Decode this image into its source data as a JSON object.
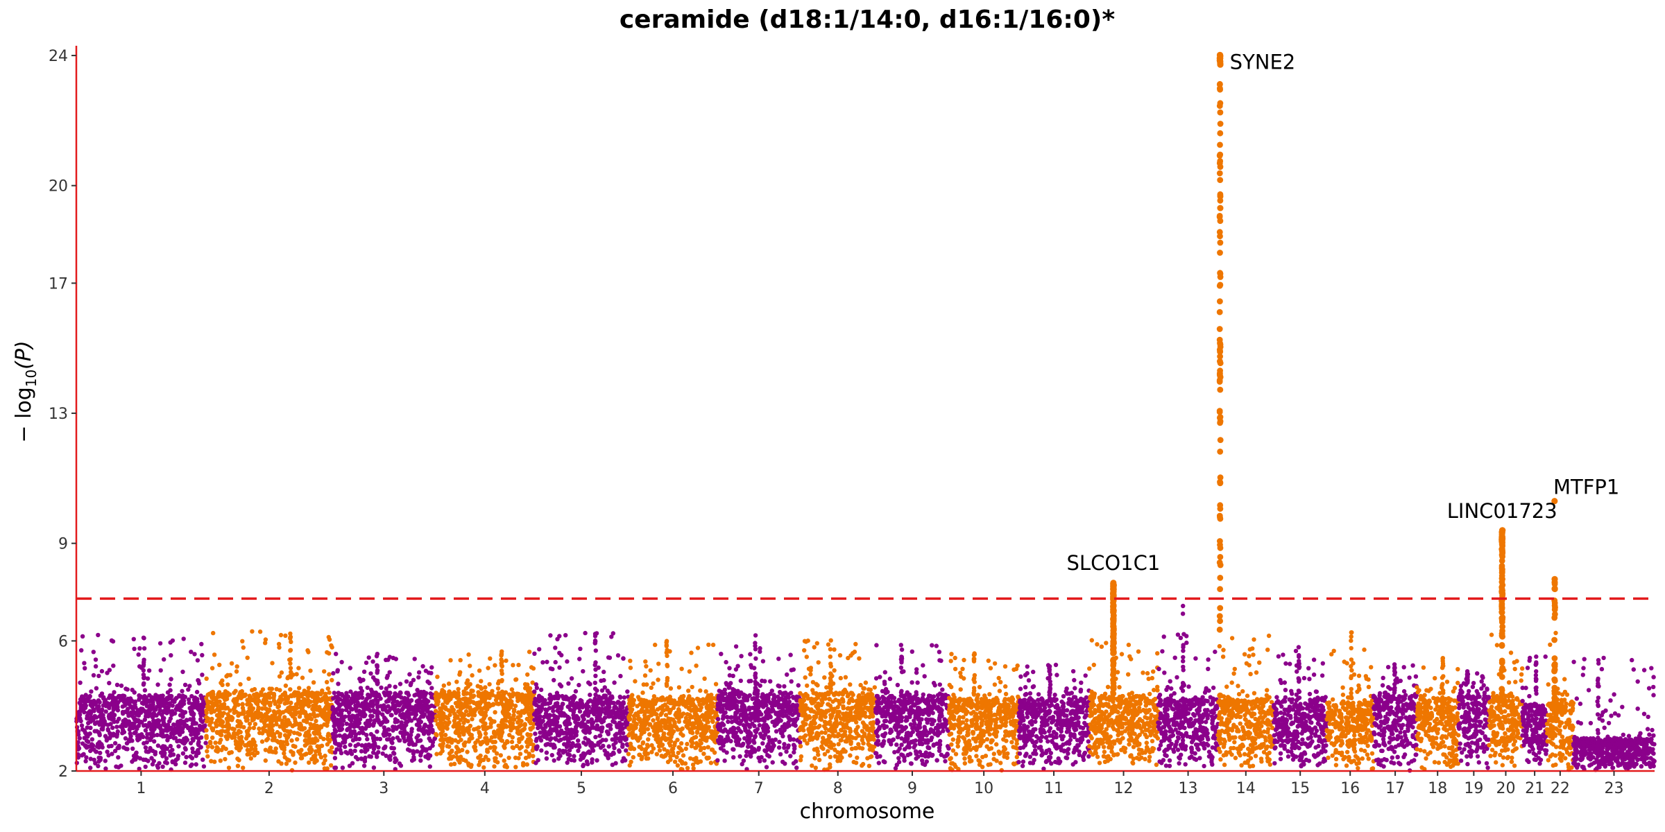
{
  "chart_data": {
    "type": "scatter",
    "subtype": "manhattan",
    "title": "ceramide (d18:1/14:0, d16:1/16:0)*",
    "xlabel": "chromosome",
    "ylabel_parts": {
      "prefix": "− log",
      "sub": "10",
      "suffix": "(P)"
    },
    "ylim": [
      2,
      24.3
    ],
    "yticks": [
      2,
      6,
      9,
      13,
      17,
      20,
      24
    ],
    "significance_line": 7.3,
    "colors": {
      "odd": "#8B008B",
      "even": "#EE7600",
      "axis": "#E31A1C",
      "threshold": "#E31A1C"
    },
    "chromosomes": [
      {
        "label": "1",
        "x0": 0,
        "x1": 249,
        "base": 4.3,
        "peak": 6.2
      },
      {
        "label": "2",
        "x0": 249,
        "x1": 492,
        "base": 4.4,
        "peak": 6.3
      },
      {
        "label": "3",
        "x0": 492,
        "x1": 690,
        "base": 4.4,
        "peak": 5.6
      },
      {
        "label": "4",
        "x0": 690,
        "x1": 880,
        "base": 4.4,
        "peak": 5.7
      },
      {
        "label": "5",
        "x0": 880,
        "x1": 1061,
        "base": 4.3,
        "peak": 6.3
      },
      {
        "label": "6",
        "x0": 1061,
        "x1": 1232,
        "base": 4.2,
        "peak": 6.0
      },
      {
        "label": "7",
        "x0": 1232,
        "x1": 1391,
        "base": 4.4,
        "peak": 6.2
      },
      {
        "label": "8",
        "x0": 1391,
        "x1": 1536,
        "base": 4.4,
        "peak": 6.1
      },
      {
        "label": "9",
        "x0": 1536,
        "x1": 1677,
        "base": 4.3,
        "peak": 5.9
      },
      {
        "label": "10",
        "x0": 1677,
        "x1": 1811,
        "base": 4.2,
        "peak": 5.7
      },
      {
        "label": "11",
        "x0": 1811,
        "x1": 1946,
        "base": 4.2,
        "peak": 5.3
      },
      {
        "label": "12",
        "x0": 1946,
        "x1": 2079,
        "base": 4.3,
        "peak": 7.8
      },
      {
        "label": "13",
        "x0": 2079,
        "x1": 2194,
        "base": 4.2,
        "peak": 7.1
      },
      {
        "label": "14",
        "x0": 2194,
        "x1": 2301,
        "base": 4.2,
        "peak": 24.1
      },
      {
        "label": "15",
        "x0": 2301,
        "x1": 2403,
        "base": 4.2,
        "peak": 5.9
      },
      {
        "label": "16",
        "x0": 2403,
        "x1": 2493,
        "base": 4.1,
        "peak": 6.3
      },
      {
        "label": "17",
        "x0": 2493,
        "x1": 2576,
        "base": 4.3,
        "peak": 5.3
      },
      {
        "label": "18",
        "x0": 2576,
        "x1": 2656,
        "base": 4.2,
        "peak": 5.5
      },
      {
        "label": "19",
        "x0": 2656,
        "x1": 2715,
        "base": 4.4,
        "peak": 5.1
      },
      {
        "label": "20",
        "x0": 2715,
        "x1": 2779,
        "base": 4.3,
        "peak": 9.4
      },
      {
        "label": "21",
        "x0": 2779,
        "x1": 2826,
        "base": 4.0,
        "peak": 5.6
      },
      {
        "label": "22",
        "x0": 2826,
        "x1": 2877,
        "base": 4.1,
        "peak": 10.3
      },
      {
        "label": "23",
        "x0": 2877,
        "x1": 3033,
        "base": 3.0,
        "peak": 5.5
      }
    ],
    "peaks": [
      {
        "chrom": "12",
        "pos": 1993,
        "max": 7.8,
        "dense": true,
        "gene": "SLCO1C1",
        "label_side": "above"
      },
      {
        "chrom": "14",
        "pos": 2198,
        "max": 24.1,
        "dense": true,
        "gene": "SYNE2",
        "label_side": "right"
      },
      {
        "chrom": "20",
        "pos": 2740,
        "max": 9.4,
        "dense": true,
        "gene": "LINC01723",
        "label_side": "above"
      },
      {
        "chrom": "22",
        "pos": 2841,
        "max": 10.3,
        "dense": false,
        "gene": "MTFP1",
        "label_side": "above-right"
      }
    ]
  }
}
